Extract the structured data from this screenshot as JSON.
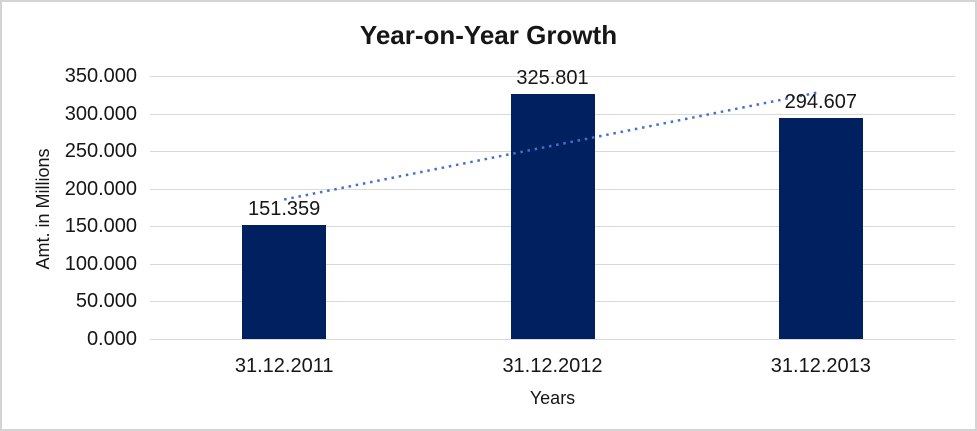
{
  "chart_data": {
    "type": "bar",
    "title": "Year-on-Year Growth",
    "xlabel": "Years",
    "ylabel": "Amt. in Millions",
    "categories": [
      "31.12.2011",
      "31.12.2012",
      "31.12.2013"
    ],
    "values": [
      151.359,
      325.801,
      294.607
    ],
    "data_labels": [
      "151.359",
      "325.801",
      "294.607"
    ],
    "ylim": [
      0,
      350
    ],
    "ytick_step": 50,
    "ytick_labels": [
      "0.000",
      "50.000",
      "100.000",
      "150.000",
      "200.000",
      "250.000",
      "300.000",
      "350.000"
    ],
    "grid": true,
    "legend": false,
    "trendline": {
      "type": "linear",
      "style": "dotted",
      "values": [
        185.63,
        257.26,
        328.88
      ]
    },
    "colors": {
      "bar": "#002060",
      "trendline": "#4472C4",
      "gridline": "#D9D9D9",
      "text": "#161616",
      "background": "#FFFFFF"
    }
  }
}
